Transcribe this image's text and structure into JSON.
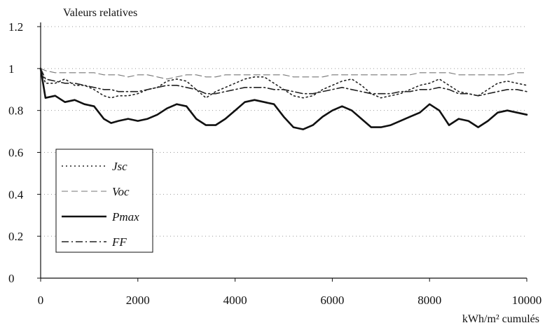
{
  "chart_data": {
    "type": "line",
    "title": "",
    "ylabel": "Valeurs relatives",
    "xlabel": "kWh/m² cumulés",
    "xlim": [
      0,
      10000
    ],
    "ylim": [
      0,
      1.2
    ],
    "x_ticks": [
      0,
      2000,
      4000,
      6000,
      8000,
      10000
    ],
    "x_tick_labels": [
      "0",
      "2000",
      "4000",
      "6000",
      "8000",
      "10000"
    ],
    "y_ticks": [
      0,
      0.2,
      0.4,
      0.6,
      0.8,
      1,
      1.2
    ],
    "y_tick_labels": [
      "0",
      "0.2",
      "0.4",
      "0.6",
      "0.8",
      "1",
      "1.2"
    ],
    "grid": "horizontal dotted",
    "legend_position": "bottom-left",
    "x": [
      0,
      100,
      300,
      500,
      700,
      900,
      1100,
      1300,
      1450,
      1600,
      1800,
      2000,
      2200,
      2400,
      2600,
      2800,
      3000,
      3200,
      3400,
      3600,
      3800,
      4000,
      4200,
      4400,
      4600,
      4800,
      5000,
      5200,
      5400,
      5600,
      5800,
      6000,
      6200,
      6400,
      6600,
      6800,
      7000,
      7200,
      7400,
      7600,
      7800,
      8000,
      8200,
      8400,
      8600,
      8800,
      9000,
      9200,
      9400,
      9600,
      9800,
      10000
    ],
    "series": [
      {
        "name": "Jsc",
        "style": "dotted",
        "values": [
          1.0,
          0.93,
          0.93,
          0.95,
          0.92,
          0.92,
          0.9,
          0.87,
          0.86,
          0.87,
          0.87,
          0.88,
          0.9,
          0.91,
          0.94,
          0.95,
          0.94,
          0.9,
          0.86,
          0.89,
          0.91,
          0.93,
          0.95,
          0.96,
          0.96,
          0.93,
          0.9,
          0.87,
          0.86,
          0.87,
          0.9,
          0.92,
          0.94,
          0.95,
          0.92,
          0.88,
          0.86,
          0.87,
          0.88,
          0.9,
          0.92,
          0.93,
          0.95,
          0.92,
          0.89,
          0.88,
          0.87,
          0.9,
          0.93,
          0.94,
          0.93,
          0.92
        ]
      },
      {
        "name": "Voc",
        "style": "dashed",
        "values": [
          1.0,
          0.99,
          0.98,
          0.98,
          0.98,
          0.98,
          0.98,
          0.97,
          0.97,
          0.97,
          0.96,
          0.97,
          0.97,
          0.96,
          0.95,
          0.96,
          0.97,
          0.97,
          0.96,
          0.96,
          0.97,
          0.97,
          0.97,
          0.97,
          0.97,
          0.97,
          0.97,
          0.96,
          0.96,
          0.96,
          0.96,
          0.97,
          0.97,
          0.97,
          0.97,
          0.97,
          0.97,
          0.97,
          0.97,
          0.97,
          0.98,
          0.98,
          0.98,
          0.98,
          0.97,
          0.97,
          0.97,
          0.97,
          0.97,
          0.97,
          0.98,
          0.98
        ]
      },
      {
        "name": "Pmax",
        "style": "solid",
        "values": [
          1.0,
          0.86,
          0.87,
          0.84,
          0.85,
          0.83,
          0.82,
          0.76,
          0.74,
          0.75,
          0.76,
          0.75,
          0.76,
          0.78,
          0.81,
          0.83,
          0.82,
          0.76,
          0.73,
          0.73,
          0.76,
          0.8,
          0.84,
          0.85,
          0.84,
          0.83,
          0.77,
          0.72,
          0.71,
          0.73,
          0.77,
          0.8,
          0.82,
          0.8,
          0.76,
          0.72,
          0.72,
          0.73,
          0.75,
          0.77,
          0.79,
          0.83,
          0.8,
          0.73,
          0.76,
          0.75,
          0.72,
          0.75,
          0.79,
          0.8,
          0.79,
          0.78
        ]
      },
      {
        "name": "FF",
        "style": "dashdot",
        "values": [
          1.0,
          0.95,
          0.94,
          0.93,
          0.93,
          0.92,
          0.91,
          0.9,
          0.9,
          0.89,
          0.89,
          0.89,
          0.9,
          0.91,
          0.92,
          0.92,
          0.91,
          0.9,
          0.88,
          0.88,
          0.89,
          0.9,
          0.91,
          0.91,
          0.91,
          0.9,
          0.9,
          0.89,
          0.88,
          0.88,
          0.89,
          0.9,
          0.91,
          0.9,
          0.89,
          0.88,
          0.88,
          0.88,
          0.89,
          0.89,
          0.9,
          0.9,
          0.91,
          0.9,
          0.88,
          0.88,
          0.87,
          0.88,
          0.89,
          0.9,
          0.9,
          0.89
        ]
      }
    ]
  }
}
